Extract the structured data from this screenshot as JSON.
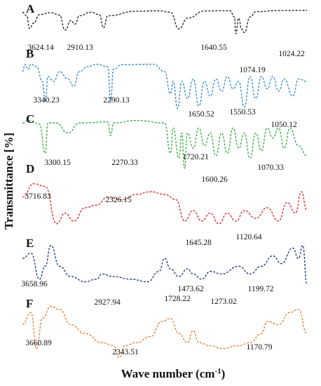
{
  "chart_data": {
    "type": "line",
    "title": "",
    "xlabel": "Wave number (cm-1)",
    "xlabel_base": "Wave number (cm",
    "xlabel_sup": "-1",
    "xlabel_end": ")",
    "ylabel": "Transmittance [%]",
    "x_direction": "decreasing (high wavenumber at left)",
    "grid": false,
    "line_style": "dashed",
    "series": [
      {
        "name": "A",
        "color": "#1a1a1a",
        "peaks": [
          "3624.14",
          "2910.13",
          "1640.55",
          "1074.19",
          "1024.22"
        ],
        "trace": [
          [
            0,
            0.1
          ],
          [
            0.015,
            0.25
          ],
          [
            0.025,
            0.78
          ],
          [
            0.04,
            0.55
          ],
          [
            0.06,
            0.2
          ],
          [
            0.1,
            0.12
          ],
          [
            0.13,
            0.22
          ],
          [
            0.15,
            0.85
          ],
          [
            0.17,
            0.45
          ],
          [
            0.185,
            0.6
          ],
          [
            0.2,
            0.25
          ],
          [
            0.24,
            0.1
          ],
          [
            0.27,
            0.2
          ],
          [
            0.285,
            0.75
          ],
          [
            0.3,
            0.25
          ],
          [
            0.4,
            0.06
          ],
          [
            0.48,
            0.04
          ],
          [
            0.52,
            0.1
          ],
          [
            0.55,
            0.8
          ],
          [
            0.58,
            0.35
          ],
          [
            0.64,
            0.05
          ],
          [
            0.7,
            0.04
          ],
          [
            0.73,
            0.04
          ],
          [
            0.745,
            0.3
          ],
          [
            0.75,
            1.0
          ],
          [
            0.76,
            0.35
          ],
          [
            0.77,
            0.8
          ],
          [
            0.78,
            0.95
          ],
          [
            0.8,
            0.3
          ],
          [
            0.82,
            0.08
          ],
          [
            0.9,
            0.03
          ],
          [
            1.0,
            0.02
          ]
        ]
      },
      {
        "name": "B",
        "color": "#2a86d0",
        "peaks": [
          "3340.23",
          "2290.13",
          "1650.52",
          "1550.53",
          "1050.12"
        ],
        "trace": [
          [
            0,
            0.2
          ],
          [
            0.01,
            0.05
          ],
          [
            0.02,
            0.15
          ],
          [
            0.03,
            0.05
          ],
          [
            0.05,
            0.1
          ],
          [
            0.07,
            0.4
          ],
          [
            0.08,
            0.8
          ],
          [
            0.09,
            0.3
          ],
          [
            0.11,
            0.4
          ],
          [
            0.13,
            0.2
          ],
          [
            0.16,
            0.35
          ],
          [
            0.18,
            0.5
          ],
          [
            0.2,
            0.2
          ],
          [
            0.23,
            0.1
          ],
          [
            0.26,
            0.05
          ],
          [
            0.3,
            0.1
          ],
          [
            0.31,
            0.8
          ],
          [
            0.32,
            0.15
          ],
          [
            0.35,
            0.06
          ],
          [
            0.46,
            0.05
          ],
          [
            0.5,
            0.2
          ],
          [
            0.52,
            0.65
          ],
          [
            0.53,
            0.4
          ],
          [
            0.545,
            0.95
          ],
          [
            0.56,
            0.4
          ],
          [
            0.58,
            0.75
          ],
          [
            0.6,
            0.35
          ],
          [
            0.62,
            0.9
          ],
          [
            0.64,
            0.4
          ],
          [
            0.66,
            0.7
          ],
          [
            0.68,
            0.35
          ],
          [
            0.7,
            0.6
          ],
          [
            0.72,
            0.3
          ],
          [
            0.74,
            0.55
          ],
          [
            0.76,
            0.4
          ],
          [
            0.78,
            0.92
          ],
          [
            0.8,
            0.3
          ],
          [
            0.82,
            0.75
          ],
          [
            0.84,
            0.3
          ],
          [
            0.86,
            0.55
          ],
          [
            0.88,
            0.3
          ],
          [
            0.9,
            0.6
          ],
          [
            0.92,
            0.35
          ],
          [
            0.95,
            0.7
          ],
          [
            0.97,
            0.35
          ],
          [
            1.0,
            0.4
          ]
        ]
      },
      {
        "name": "C",
        "color": "#2eaa3c",
        "peaks": [
          "3300.15",
          "2270.33",
          "1720.21",
          "1600.26",
          "1070.33"
        ],
        "trace": [
          [
            0,
            0.1
          ],
          [
            0.02,
            0.05
          ],
          [
            0.06,
            0.12
          ],
          [
            0.08,
            0.7
          ],
          [
            0.09,
            0.1
          ],
          [
            0.12,
            0.1
          ],
          [
            0.16,
            0.3
          ],
          [
            0.2,
            0.1
          ],
          [
            0.3,
            0.08
          ],
          [
            0.31,
            0.35
          ],
          [
            0.32,
            0.1
          ],
          [
            0.4,
            0.05
          ],
          [
            0.5,
            0.1
          ],
          [
            0.52,
            0.7
          ],
          [
            0.53,
            0.2
          ],
          [
            0.55,
            0.8
          ],
          [
            0.56,
            0.3
          ],
          [
            0.57,
            1.0
          ],
          [
            0.58,
            0.3
          ],
          [
            0.6,
            0.6
          ],
          [
            0.62,
            0.2
          ],
          [
            0.64,
            0.55
          ],
          [
            0.66,
            0.3
          ],
          [
            0.68,
            0.75
          ],
          [
            0.7,
            0.3
          ],
          [
            0.72,
            0.7
          ],
          [
            0.74,
            0.2
          ],
          [
            0.76,
            0.6
          ],
          [
            0.78,
            0.3
          ],
          [
            0.8,
            0.8
          ],
          [
            0.82,
            0.3
          ],
          [
            0.84,
            0.65
          ],
          [
            0.86,
            0.2
          ],
          [
            0.88,
            0.4
          ],
          [
            0.9,
            0.2
          ],
          [
            0.92,
            0.6
          ],
          [
            0.94,
            0.2
          ],
          [
            0.97,
            0.55
          ],
          [
            1.0,
            0.75
          ]
        ]
      },
      {
        "name": "D",
        "color": "#e02020",
        "peaks": [
          "3716.83",
          "2326.15",
          "1645.28",
          "1120.64"
        ],
        "trace": [
          [
            0,
            0.3
          ],
          [
            0.04,
            0.05
          ],
          [
            0.08,
            0.1
          ],
          [
            0.12,
            0.8
          ],
          [
            0.15,
            0.6
          ],
          [
            0.18,
            0.75
          ],
          [
            0.22,
            0.5
          ],
          [
            0.26,
            0.45
          ],
          [
            0.3,
            0.3
          ],
          [
            0.35,
            0.35
          ],
          [
            0.4,
            0.25
          ],
          [
            0.45,
            0.2
          ],
          [
            0.5,
            0.25
          ],
          [
            0.54,
            0.35
          ],
          [
            0.57,
            0.75
          ],
          [
            0.6,
            0.55
          ],
          [
            0.63,
            0.75
          ],
          [
            0.66,
            0.6
          ],
          [
            0.69,
            0.8
          ],
          [
            0.72,
            0.6
          ],
          [
            0.75,
            0.75
          ],
          [
            0.78,
            0.55
          ],
          [
            0.82,
            0.7
          ],
          [
            0.86,
            0.5
          ],
          [
            0.9,
            0.75
          ],
          [
            0.93,
            0.4
          ],
          [
            0.96,
            0.6
          ],
          [
            0.98,
            0.2
          ],
          [
            1.0,
            0.55
          ]
        ]
      },
      {
        "name": "E",
        "color": "#1a2d8a",
        "peaks": [
          "3658.96",
          "2927.94",
          "1728.22",
          "1473.62",
          "1273.02",
          "1199.72"
        ],
        "trace": [
          [
            0,
            0.3
          ],
          [
            0.03,
            0.2
          ],
          [
            0.06,
            0.7
          ],
          [
            0.08,
            0.45
          ],
          [
            0.1,
            0.05
          ],
          [
            0.13,
            0.45
          ],
          [
            0.17,
            0.65
          ],
          [
            0.22,
            0.75
          ],
          [
            0.26,
            0.7
          ],
          [
            0.28,
            0.6
          ],
          [
            0.32,
            0.65
          ],
          [
            0.38,
            0.7
          ],
          [
            0.44,
            0.75
          ],
          [
            0.48,
            0.55
          ],
          [
            0.5,
            0.3
          ],
          [
            0.52,
            0.5
          ],
          [
            0.55,
            0.65
          ],
          [
            0.58,
            0.5
          ],
          [
            0.6,
            0.6
          ],
          [
            0.63,
            0.7
          ],
          [
            0.66,
            0.55
          ],
          [
            0.7,
            0.6
          ],
          [
            0.76,
            0.45
          ],
          [
            0.8,
            0.6
          ],
          [
            0.84,
            0.45
          ],
          [
            0.88,
            0.25
          ],
          [
            0.91,
            0.4
          ],
          [
            0.95,
            0.1
          ],
          [
            0.97,
            0.3
          ],
          [
            0.985,
            0.05
          ],
          [
            1.0,
            0.8
          ]
        ]
      },
      {
        "name": "F",
        "color": "#e07a2e",
        "peaks": [
          "3660.89",
          "2343.51",
          "1170.79"
        ],
        "trace": [
          [
            0,
            0.4
          ],
          [
            0.03,
            0.2
          ],
          [
            0.05,
            0.8
          ],
          [
            0.07,
            0.3
          ],
          [
            0.1,
            0.1
          ],
          [
            0.13,
            0.15
          ],
          [
            0.17,
            0.4
          ],
          [
            0.22,
            0.55
          ],
          [
            0.28,
            0.7
          ],
          [
            0.32,
            0.75
          ],
          [
            0.34,
            0.95
          ],
          [
            0.36,
            0.75
          ],
          [
            0.4,
            0.7
          ],
          [
            0.45,
            0.6
          ],
          [
            0.49,
            0.35
          ],
          [
            0.52,
            0.3
          ],
          [
            0.55,
            0.55
          ],
          [
            0.58,
            0.7
          ],
          [
            0.6,
            0.5
          ],
          [
            0.62,
            0.7
          ],
          [
            0.66,
            0.75
          ],
          [
            0.7,
            0.8
          ],
          [
            0.76,
            0.75
          ],
          [
            0.8,
            0.7
          ],
          [
            0.84,
            0.55
          ],
          [
            0.86,
            0.35
          ],
          [
            0.9,
            0.4
          ],
          [
            0.94,
            0.2
          ],
          [
            0.97,
            0.15
          ],
          [
            1.0,
            0.55
          ]
        ]
      }
    ]
  }
}
